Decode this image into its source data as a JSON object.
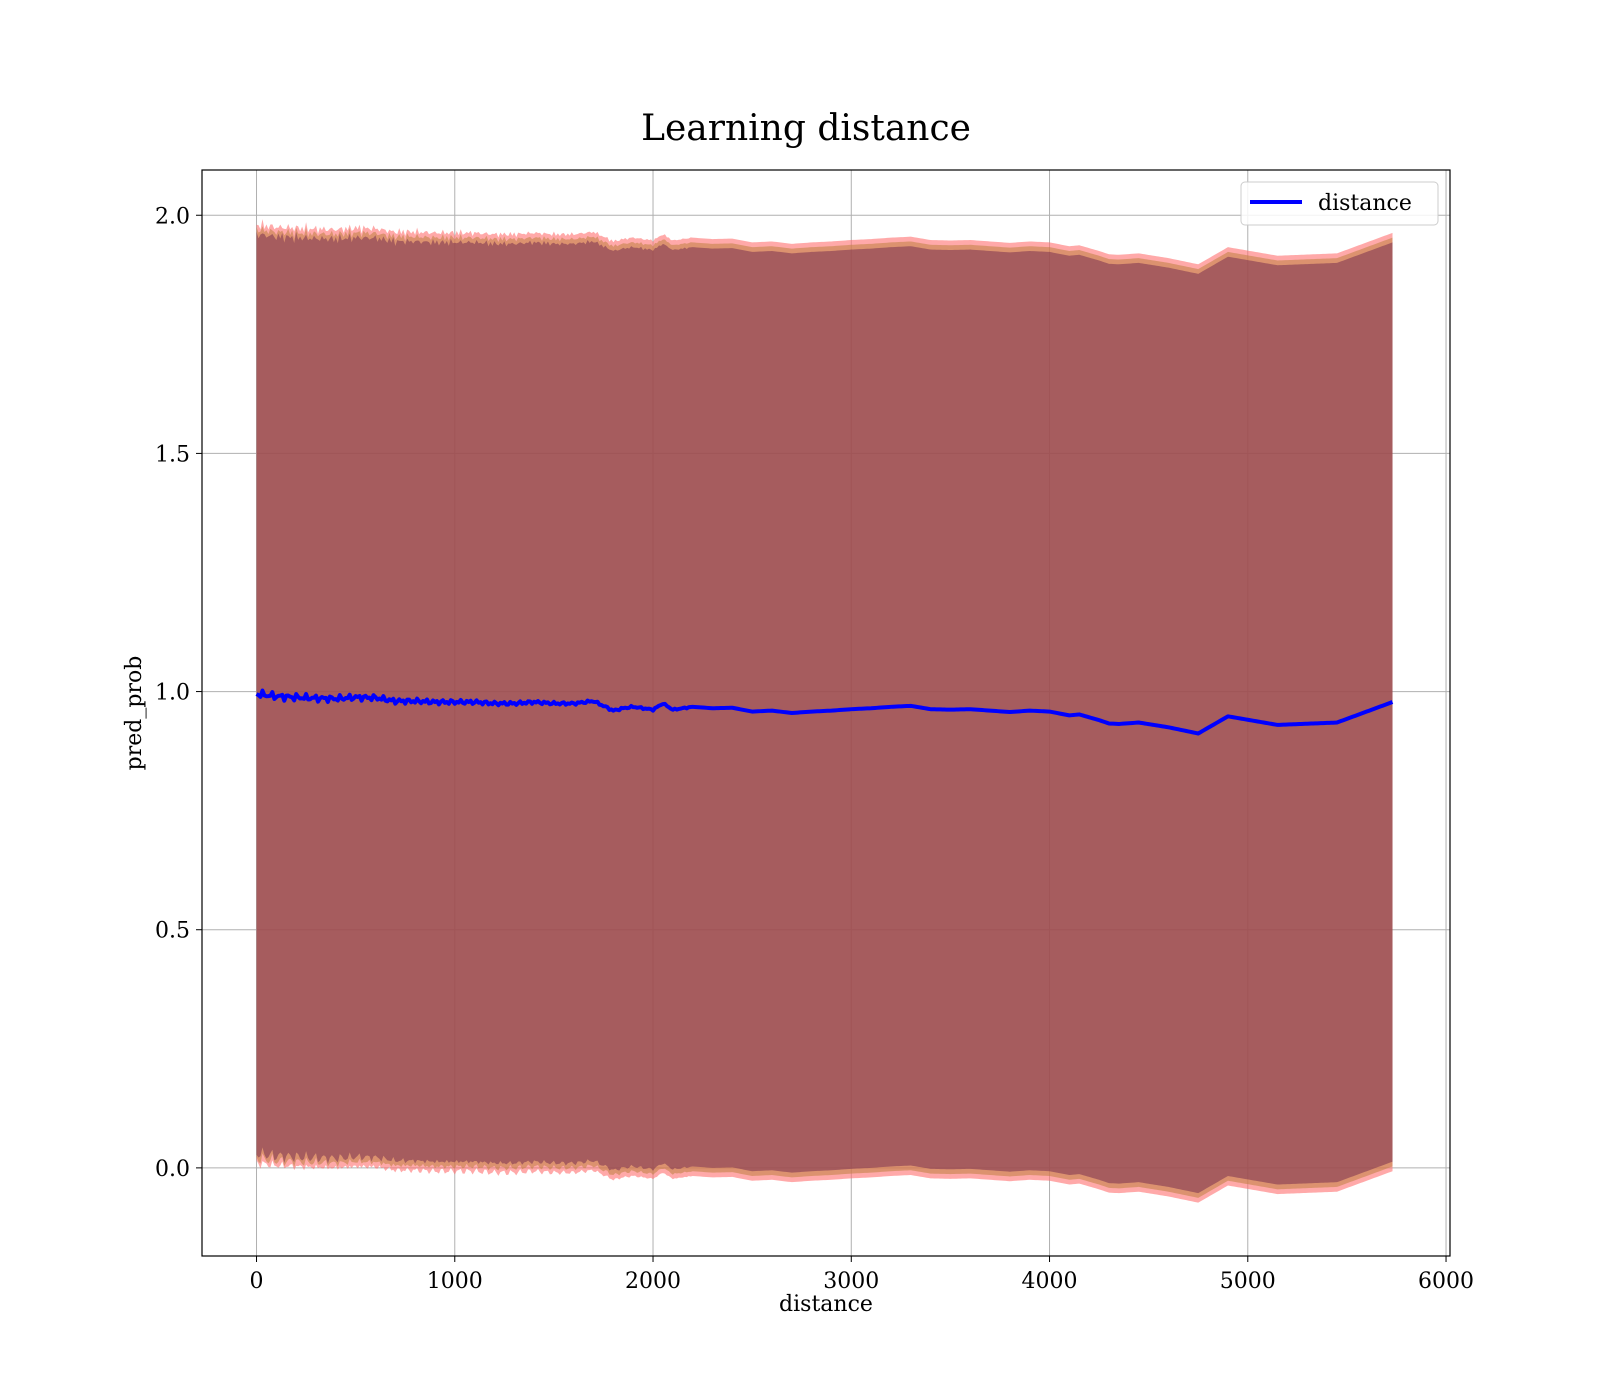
{
  "chart_data": {
    "type": "line",
    "title": "Learning distance",
    "xlabel": "distance",
    "ylabel": "pred_prob",
    "xlim": [
      -275,
      6020
    ],
    "ylim": [
      -0.185,
      2.095
    ],
    "xticks": [
      0,
      1000,
      2000,
      3000,
      4000,
      5000,
      6000
    ],
    "yticks": [
      0.0,
      0.5,
      1.0,
      1.5,
      2.0
    ],
    "xtick_labels": [
      "0",
      "1000",
      "2000",
      "3000",
      "4000",
      "5000",
      "6000"
    ],
    "ytick_labels": [
      "0.0",
      "0.5",
      "1.0",
      "1.5",
      "2.0"
    ],
    "grid": true,
    "legend_position": "top-right",
    "series": [
      {
        "name": "distance",
        "color": "#0000ff",
        "x": [
          0,
          100,
          200,
          300,
          400,
          500,
          600,
          700,
          800,
          900,
          1000,
          1100,
          1200,
          1300,
          1400,
          1500,
          1600,
          1700,
          1750,
          1800,
          1850,
          1900,
          2000,
          2050,
          2100,
          2200,
          2300,
          2400,
          2500,
          2600,
          2700,
          2800,
          2900,
          3000,
          3100,
          3200,
          3300,
          3400,
          3500,
          3600,
          3700,
          3800,
          3900,
          4000,
          4100,
          4150,
          4250,
          4300,
          4350,
          4450,
          4600,
          4750,
          4900,
          5150,
          5450,
          5730
        ],
        "y": [
          0.995,
          0.99,
          0.988,
          0.986,
          0.985,
          0.988,
          0.987,
          0.98,
          0.98,
          0.978,
          0.978,
          0.978,
          0.975,
          0.975,
          0.978,
          0.975,
          0.975,
          0.98,
          0.97,
          0.96,
          0.965,
          0.968,
          0.962,
          0.975,
          0.962,
          0.968,
          0.965,
          0.966,
          0.958,
          0.96,
          0.955,
          0.958,
          0.96,
          0.963,
          0.965,
          0.968,
          0.97,
          0.963,
          0.962,
          0.963,
          0.96,
          0.957,
          0.96,
          0.958,
          0.95,
          0.952,
          0.94,
          0.933,
          0.932,
          0.935,
          0.925,
          0.912,
          0.948,
          0.93,
          0.935,
          0.978
        ]
      }
    ],
    "bands": [
      {
        "color": "#ff6f6f",
        "opacity": 0.6,
        "offset_upper": 0.985,
        "offset_lower": 0.985
      },
      {
        "color": "#c08040",
        "opacity": 0.55,
        "offset_upper": 0.975,
        "offset_lower": 0.975
      },
      {
        "color": "#7a3050",
        "opacity": 0.55,
        "offset_upper": 0.965,
        "offset_lower": 0.965
      }
    ]
  }
}
